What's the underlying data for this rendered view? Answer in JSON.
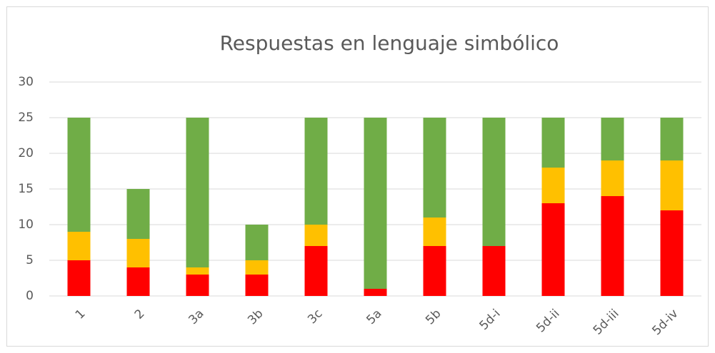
{
  "chart_data": {
    "type": "stacked_bar",
    "title": "Respuestas en lenguaje simbólico",
    "categories": [
      "1",
      "2",
      "3a",
      "3b",
      "3c",
      "5a",
      "5b",
      "5d-i",
      "5d-ii",
      "5d-iii",
      "5d-iv"
    ],
    "series": [
      {
        "color": "#ff0000",
        "values": [
          5,
          4,
          3,
          3,
          7,
          1,
          7,
          7,
          13,
          14,
          12
        ]
      },
      {
        "color": "#ffc000",
        "values": [
          4,
          4,
          1,
          2,
          3,
          0,
          4,
          0,
          5,
          5,
          7
        ]
      },
      {
        "color": "#70ad47",
        "values": [
          16,
          7,
          21,
          5,
          15,
          24,
          14,
          18,
          7,
          6,
          6
        ]
      }
    ],
    "ylim": [
      0,
      30
    ],
    "yticks": [
      0,
      5,
      10,
      15,
      20,
      25,
      30
    ],
    "grid": true
  }
}
